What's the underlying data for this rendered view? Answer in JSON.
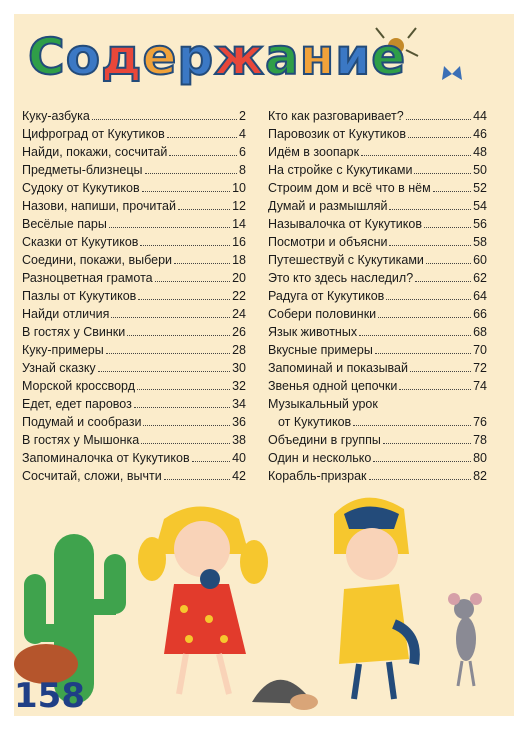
{
  "header": {
    "title": "Содержание"
  },
  "contents": {
    "left": [
      {
        "title": "Куку-азбука",
        "page": 2
      },
      {
        "title": "Цифроград от Кукутиков",
        "page": 4
      },
      {
        "title": "Найди, покажи, сосчитай",
        "page": 6
      },
      {
        "title": "Предметы-близнецы",
        "page": 8
      },
      {
        "title": "Судоку от Кукутиков",
        "page": 10
      },
      {
        "title": "Назови, напиши, прочитай",
        "page": 12
      },
      {
        "title": "Весёлые пары",
        "page": 14
      },
      {
        "title": "Сказки от Кукутиков",
        "page": 16
      },
      {
        "title": "Соедини, покажи, выбери",
        "page": 18
      },
      {
        "title": "Разноцветная грамота",
        "page": 20
      },
      {
        "title": "Пазлы от Кукутиков",
        "page": 22
      },
      {
        "title": "Найди отличия",
        "page": 24
      },
      {
        "title": "В гостях у Свинки",
        "page": 26
      },
      {
        "title": "Куку-примеры",
        "page": 28
      },
      {
        "title": "Узнай сказку",
        "page": 30
      },
      {
        "title": "Морской кроссворд",
        "page": 32
      },
      {
        "title": "Едет, едет паровоз",
        "page": 34
      },
      {
        "title": "Подумай и сообрази",
        "page": 36
      },
      {
        "title": "В гостях у Мышонка",
        "page": 38
      },
      {
        "title": "Запоминалочка от Кукутиков",
        "page": 40
      },
      {
        "title": "Сосчитай, сложи, вычти",
        "page": 42
      }
    ],
    "right": [
      {
        "title": "Кто как разговаривает?",
        "page": 44
      },
      {
        "title": "Паровозик от Кукутиков",
        "page": 46
      },
      {
        "title": "Идём в зоопарк",
        "page": 48
      },
      {
        "title": "На стройке с Кукутиками",
        "page": 50
      },
      {
        "title": "Строим дом и всё что в нём",
        "page": 52
      },
      {
        "title": "Думай и размышляй",
        "page": 54
      },
      {
        "title": "Называлочка от Кукутиков",
        "page": 56
      },
      {
        "title": "Посмотри и объясни",
        "page": 58
      },
      {
        "title": "Путешествуй с Кукутиками",
        "page": 60
      },
      {
        "title": "Это кто здесь наследил?",
        "page": 62
      },
      {
        "title": "Радуга от Кукутиков",
        "page": 64
      },
      {
        "title": "Собери половинки",
        "page": 66
      },
      {
        "title": "Язык животных",
        "page": 68
      },
      {
        "title": "Вкусные примеры",
        "page": 70
      },
      {
        "title": "Запоминай и показывай",
        "page": 72
      },
      {
        "title": "Звенья одной цепочки",
        "page": 74
      },
      {
        "title": "Музыкальный урок",
        "title_line2": "от Кукутиков",
        "page": 76
      },
      {
        "title": "Объедини в группы",
        "page": 78
      },
      {
        "title": "Один и несколько",
        "page": 80
      },
      {
        "title": "Корабль-призрак",
        "page": 82
      }
    ]
  },
  "footer": {
    "page_number": 158
  }
}
